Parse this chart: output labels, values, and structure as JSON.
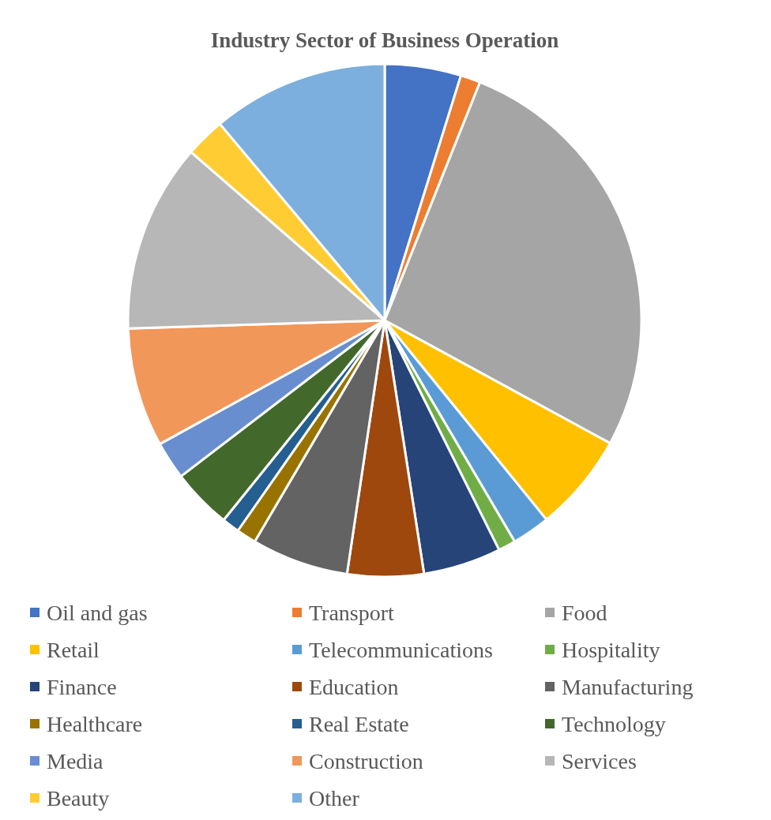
{
  "chart_data": {
    "type": "pie",
    "title": "Industry Sector of Business Operation",
    "categories": [
      "Oil and gas",
      "Transport",
      "Food",
      "Retail",
      "Telecommunications",
      "Hospitality",
      "Finance",
      "Education",
      "Manufacturing",
      "Healthcare",
      "Real Estate",
      "Technology",
      "Media",
      "Construction",
      "Services",
      "Beauty",
      "Other"
    ],
    "values": [
      4.8,
      1.25,
      26.9,
      6.2,
      2.4,
      1.1,
      4.9,
      4.8,
      6.1,
      1.25,
      1.1,
      3.8,
      2.4,
      7.5,
      11.9,
      2.5,
      11.1
    ],
    "colors": [
      "#4472c4",
      "#ed7d31",
      "#a5a5a5",
      "#ffc000",
      "#5b9bd5",
      "#70ad47",
      "#264478",
      "#9e480e",
      "#636363",
      "#997300",
      "#255e91",
      "#43682b",
      "#698ed0",
      "#f1975a",
      "#b7b7b7",
      "#ffcd33",
      "#7cafdd"
    ],
    "legend": "bottom"
  }
}
